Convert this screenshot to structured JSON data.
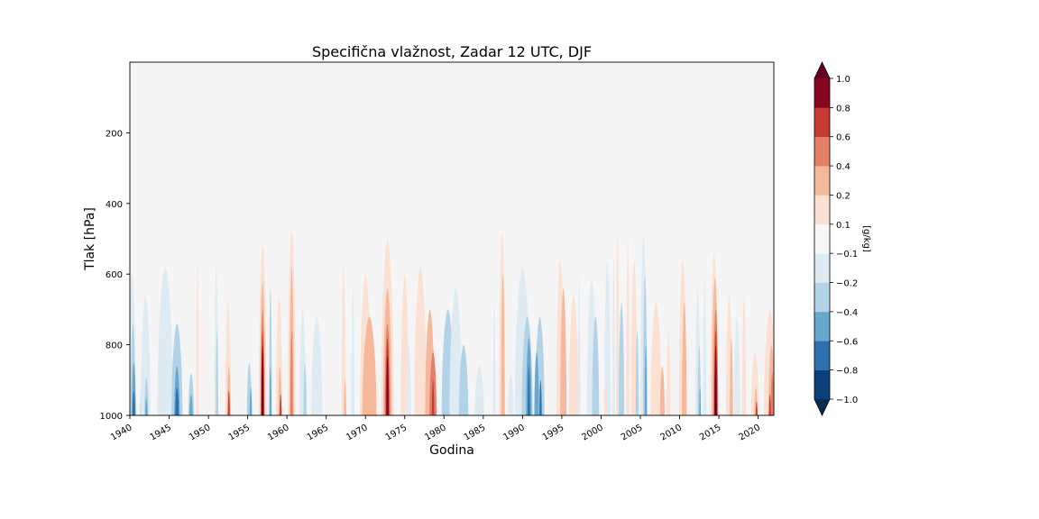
{
  "chart_data": {
    "type": "heatmap",
    "title": "Specifična vlažnost, Zadar 12 UTC, DJF",
    "xlabel": "Godina",
    "ylabel": "Tlak [hPa]",
    "xlim": [
      1940,
      2022
    ],
    "ylim": [
      1000,
      0
    ],
    "x_ticks": [
      1940,
      1945,
      1950,
      1955,
      1960,
      1965,
      1970,
      1975,
      1980,
      1985,
      1990,
      1995,
      2000,
      2005,
      2010,
      2015,
      2020
    ],
    "y_ticks": [
      200,
      400,
      600,
      800,
      1000
    ],
    "colorbar": {
      "label": "[g/kg]",
      "levels": [
        -1.0,
        -0.8,
        -0.6,
        -0.4,
        -0.2,
        -0.1,
        0.1,
        0.2,
        0.4,
        0.6,
        0.8,
        1.0
      ],
      "tick_labels": [
        "−1.0",
        "−0.8",
        "−0.6",
        "−0.4",
        "−0.2",
        "−0.1",
        "0.1",
        "0.2",
        "0.4",
        "0.6",
        "0.8",
        "1.0"
      ],
      "colors": [
        "#0d3f7a",
        "#2f70b0",
        "#68a8cf",
        "#b2d3e7",
        "#deebf3",
        "#f7f7f7",
        "#fbe1d3",
        "#f5b89b",
        "#e58067",
        "#c73b37",
        "#87061f"
      ],
      "extend": "both",
      "under_color": "#0a2a52",
      "over_color": "#67001f"
    },
    "background_color": "#f5f5f5",
    "features": [
      {
        "year": 1940.3,
        "min_pressure": 600,
        "width": 0.9,
        "value": -0.1
      },
      {
        "year": 1940.4,
        "min_pressure": 740,
        "width": 0.6,
        "value": -0.3
      },
      {
        "year": 1940.5,
        "min_pressure": 850,
        "width": 0.5,
        "value": -0.5
      },
      {
        "year": 1940.5,
        "min_pressure": 930,
        "width": 0.35,
        "value": -0.7
      },
      {
        "year": 1941.6,
        "min_pressure": 900,
        "width": 0.6,
        "value": -0.3
      },
      {
        "year": 1942.0,
        "min_pressure": 660,
        "width": 1.2,
        "value": -0.1
      },
      {
        "year": 1942.1,
        "min_pressure": 890,
        "width": 0.5,
        "value": -0.2
      },
      {
        "year": 1942.1,
        "min_pressure": 950,
        "width": 0.3,
        "value": -0.5
      },
      {
        "year": 1944.5,
        "min_pressure": 580,
        "width": 2.0,
        "value": -0.1
      },
      {
        "year": 1946.0,
        "min_pressure": 740,
        "width": 1.4,
        "value": -0.3
      },
      {
        "year": 1946.0,
        "min_pressure": 860,
        "width": 0.7,
        "value": -0.5
      },
      {
        "year": 1946.0,
        "min_pressure": 920,
        "width": 0.45,
        "value": -0.7
      },
      {
        "year": 1947.8,
        "min_pressure": 880,
        "width": 0.7,
        "value": -0.3
      },
      {
        "year": 1947.8,
        "min_pressure": 940,
        "width": 0.4,
        "value": -0.5
      },
      {
        "year": 1948.6,
        "min_pressure": 580,
        "width": 0.35,
        "value": 0.15
      },
      {
        "year": 1951.0,
        "min_pressure": 580,
        "width": 0.5,
        "value": -0.1
      },
      {
        "year": 1951.1,
        "min_pressure": 760,
        "width": 0.3,
        "value": -0.3
      },
      {
        "year": 1952.5,
        "min_pressure": 680,
        "width": 0.7,
        "value": 0.15
      },
      {
        "year": 1952.6,
        "min_pressure": 860,
        "width": 0.45,
        "value": 0.3
      },
      {
        "year": 1952.6,
        "min_pressure": 930,
        "width": 0.25,
        "value": 0.7
      },
      {
        "year": 1955.2,
        "min_pressure": 850,
        "width": 0.6,
        "value": -0.2
      },
      {
        "year": 1955.4,
        "min_pressure": 920,
        "width": 0.3,
        "value": -0.5
      },
      {
        "year": 1956.9,
        "min_pressure": 520,
        "width": 1.0,
        "value": 0.15
      },
      {
        "year": 1956.9,
        "min_pressure": 620,
        "width": 0.65,
        "value": 0.3
      },
      {
        "year": 1956.9,
        "min_pressure": 700,
        "width": 0.45,
        "value": 0.5
      },
      {
        "year": 1956.9,
        "min_pressure": 760,
        "width": 0.35,
        "value": 0.7
      },
      {
        "year": 1956.9,
        "min_pressure": 800,
        "width": 0.28,
        "value": 0.9
      },
      {
        "year": 1956.9,
        "min_pressure": 820,
        "width": 0.2,
        "value": 1.2
      },
      {
        "year": 1957.9,
        "min_pressure": 640,
        "width": 0.35,
        "value": -0.2
      },
      {
        "year": 1957.9,
        "min_pressure": 860,
        "width": 0.25,
        "value": -0.5
      },
      {
        "year": 1959.0,
        "min_pressure": 660,
        "width": 0.8,
        "value": 0.15
      },
      {
        "year": 1959.1,
        "min_pressure": 860,
        "width": 0.4,
        "value": 0.3
      },
      {
        "year": 1959.2,
        "min_pressure": 940,
        "width": 0.25,
        "value": 0.7
      },
      {
        "year": 1960.6,
        "min_pressure": 480,
        "width": 1.0,
        "value": 0.15
      },
      {
        "year": 1960.6,
        "min_pressure": 580,
        "width": 0.55,
        "value": 0.3
      },
      {
        "year": 1960.6,
        "min_pressure": 760,
        "width": 0.3,
        "value": 0.5
      },
      {
        "year": 1962.0,
        "min_pressure": 700,
        "width": 0.8,
        "value": -0.1
      },
      {
        "year": 1962.3,
        "min_pressure": 850,
        "width": 0.4,
        "value": -0.3
      },
      {
        "year": 1963.8,
        "min_pressure": 720,
        "width": 1.4,
        "value": -0.1
      },
      {
        "year": 1967.2,
        "min_pressure": 580,
        "width": 0.5,
        "value": 0.15
      },
      {
        "year": 1967.4,
        "min_pressure": 900,
        "width": 0.3,
        "value": 0.3
      },
      {
        "year": 1968.4,
        "min_pressure": 640,
        "width": 0.4,
        "value": -0.1
      },
      {
        "year": 1970.0,
        "min_pressure": 600,
        "width": 1.4,
        "value": 0.15
      },
      {
        "year": 1970.5,
        "min_pressure": 720,
        "width": 1.8,
        "value": 0.3
      },
      {
        "year": 1972.8,
        "min_pressure": 500,
        "width": 1.6,
        "value": 0.15
      },
      {
        "year": 1972.8,
        "min_pressure": 640,
        "width": 1.1,
        "value": 0.3
      },
      {
        "year": 1972.8,
        "min_pressure": 740,
        "width": 0.7,
        "value": 0.5
      },
      {
        "year": 1972.8,
        "min_pressure": 780,
        "width": 0.45,
        "value": 0.7
      },
      {
        "year": 1972.8,
        "min_pressure": 830,
        "width": 0.3,
        "value": 0.9
      },
      {
        "year": 1975.0,
        "min_pressure": 600,
        "width": 1.0,
        "value": 0.15
      },
      {
        "year": 1975.5,
        "min_pressure": 800,
        "width": 0.6,
        "value": -0.1
      },
      {
        "year": 1977.0,
        "min_pressure": 580,
        "width": 1.6,
        "value": 0.15
      },
      {
        "year": 1978.2,
        "min_pressure": 700,
        "width": 1.2,
        "value": 0.3
      },
      {
        "year": 1978.6,
        "min_pressure": 820,
        "width": 0.9,
        "value": 0.5
      },
      {
        "year": 1978.6,
        "min_pressure": 900,
        "width": 0.3,
        "value": 0.7
      },
      {
        "year": 1980.5,
        "min_pressure": 700,
        "width": 1.6,
        "value": -0.2
      },
      {
        "year": 1981.5,
        "min_pressure": 640,
        "width": 1.6,
        "value": -0.1
      },
      {
        "year": 1982.5,
        "min_pressure": 800,
        "width": 1.2,
        "value": -0.3
      },
      {
        "year": 1984.5,
        "min_pressure": 860,
        "width": 1.2,
        "value": -0.1
      },
      {
        "year": 1986.4,
        "min_pressure": 680,
        "width": 0.3,
        "value": -0.1
      },
      {
        "year": 1987.4,
        "min_pressure": 480,
        "width": 0.8,
        "value": 0.15
      },
      {
        "year": 1987.5,
        "min_pressure": 600,
        "width": 0.45,
        "value": 0.3
      },
      {
        "year": 1988.5,
        "min_pressure": 880,
        "width": 0.7,
        "value": -0.1
      },
      {
        "year": 1990.0,
        "min_pressure": 580,
        "width": 2.0,
        "value": -0.1
      },
      {
        "year": 1990.6,
        "min_pressure": 720,
        "width": 1.4,
        "value": -0.3
      },
      {
        "year": 1990.8,
        "min_pressure": 780,
        "width": 0.7,
        "value": -0.5
      },
      {
        "year": 1990.8,
        "min_pressure": 860,
        "width": 0.3,
        "value": -0.7
      },
      {
        "year": 1992.2,
        "min_pressure": 720,
        "width": 1.2,
        "value": -0.3
      },
      {
        "year": 1991.8,
        "min_pressure": 820,
        "width": 0.6,
        "value": -0.5
      },
      {
        "year": 1992.3,
        "min_pressure": 900,
        "width": 0.3,
        "value": -0.7
      },
      {
        "year": 1994.8,
        "min_pressure": 560,
        "width": 1.0,
        "value": 0.15
      },
      {
        "year": 1995.2,
        "min_pressure": 640,
        "width": 0.8,
        "value": 0.3
      },
      {
        "year": 1996.5,
        "min_pressure": 660,
        "width": 1.2,
        "value": 0.15
      },
      {
        "year": 1997.2,
        "min_pressure": 600,
        "width": 0.3,
        "value": -0.1
      },
      {
        "year": 1998.8,
        "min_pressure": 620,
        "width": 1.2,
        "value": -0.1
      },
      {
        "year": 1999.3,
        "min_pressure": 720,
        "width": 0.9,
        "value": -0.2
      },
      {
        "year": 2000.8,
        "min_pressure": 560,
        "width": 0.8,
        "value": -0.1
      },
      {
        "year": 2000.6,
        "min_pressure": 880,
        "width": 0.3,
        "value": 0.15
      },
      {
        "year": 2001.6,
        "min_pressure": 560,
        "width": 0.3,
        "value": -0.1
      },
      {
        "year": 2002.1,
        "min_pressure": 490,
        "width": 0.4,
        "value": 0.15
      },
      {
        "year": 2002.6,
        "min_pressure": 680,
        "width": 0.7,
        "value": -0.2
      },
      {
        "year": 2003.4,
        "min_pressure": 500,
        "width": 0.4,
        "value": 0.15
      },
      {
        "year": 2004.2,
        "min_pressure": 560,
        "width": 0.8,
        "value": 0.15
      },
      {
        "year": 2004.6,
        "min_pressure": 760,
        "width": 0.4,
        "value": -0.3
      },
      {
        "year": 2005.4,
        "min_pressure": 490,
        "width": 0.8,
        "value": -0.1
      },
      {
        "year": 2005.6,
        "min_pressure": 600,
        "width": 0.5,
        "value": -0.3
      },
      {
        "year": 2005.7,
        "min_pressure": 800,
        "width": 0.3,
        "value": -0.5
      },
      {
        "year": 2007.0,
        "min_pressure": 680,
        "width": 1.4,
        "value": 0.15
      },
      {
        "year": 2007.8,
        "min_pressure": 860,
        "width": 0.6,
        "value": 0.3
      },
      {
        "year": 2008.6,
        "min_pressure": 760,
        "width": 0.5,
        "value": 0.15
      },
      {
        "year": 2010.4,
        "min_pressure": 560,
        "width": 1.0,
        "value": 0.15
      },
      {
        "year": 2010.6,
        "min_pressure": 680,
        "width": 0.6,
        "value": 0.3
      },
      {
        "year": 2012.3,
        "min_pressure": 640,
        "width": 0.6,
        "value": -0.1
      },
      {
        "year": 2012.5,
        "min_pressure": 800,
        "width": 0.4,
        "value": -0.2
      },
      {
        "year": 2012.6,
        "min_pressure": 920,
        "width": 0.2,
        "value": -0.5
      },
      {
        "year": 2013.2,
        "min_pressure": 610,
        "width": 0.4,
        "value": -0.1
      },
      {
        "year": 2014.4,
        "min_pressure": 540,
        "width": 1.0,
        "value": 0.15
      },
      {
        "year": 2014.5,
        "min_pressure": 610,
        "width": 0.8,
        "value": 0.3
      },
      {
        "year": 2014.6,
        "min_pressure": 700,
        "width": 0.6,
        "value": 0.5
      },
      {
        "year": 2014.6,
        "min_pressure": 760,
        "width": 0.4,
        "value": 0.7
      },
      {
        "year": 2014.6,
        "min_pressure": 800,
        "width": 0.3,
        "value": 0.9
      },
      {
        "year": 2014.6,
        "min_pressure": 880,
        "width": 0.25,
        "value": 1.2
      },
      {
        "year": 2016.3,
        "min_pressure": 660,
        "width": 0.8,
        "value": 0.15
      },
      {
        "year": 2016.6,
        "min_pressure": 780,
        "width": 0.4,
        "value": 0.3
      },
      {
        "year": 2017.3,
        "min_pressure": 720,
        "width": 0.8,
        "value": -0.1
      },
      {
        "year": 2018.2,
        "min_pressure": 660,
        "width": 0.5,
        "value": 0.15
      },
      {
        "year": 2019.6,
        "min_pressure": 820,
        "width": 1.0,
        "value": 0.15
      },
      {
        "year": 2019.7,
        "min_pressure": 920,
        "width": 0.4,
        "value": 0.3
      },
      {
        "year": 2019.8,
        "min_pressure": 960,
        "width": 0.25,
        "value": 0.7
      },
      {
        "year": 2021.5,
        "min_pressure": 700,
        "width": 1.5,
        "value": 0.15
      },
      {
        "year": 2021.7,
        "min_pressure": 800,
        "width": 0.8,
        "value": 0.3
      },
      {
        "year": 2021.8,
        "min_pressure": 880,
        "width": 0.45,
        "value": 0.5
      },
      {
        "year": 2021.5,
        "min_pressure": 940,
        "width": 0.25,
        "value": 0.7
      }
    ]
  }
}
